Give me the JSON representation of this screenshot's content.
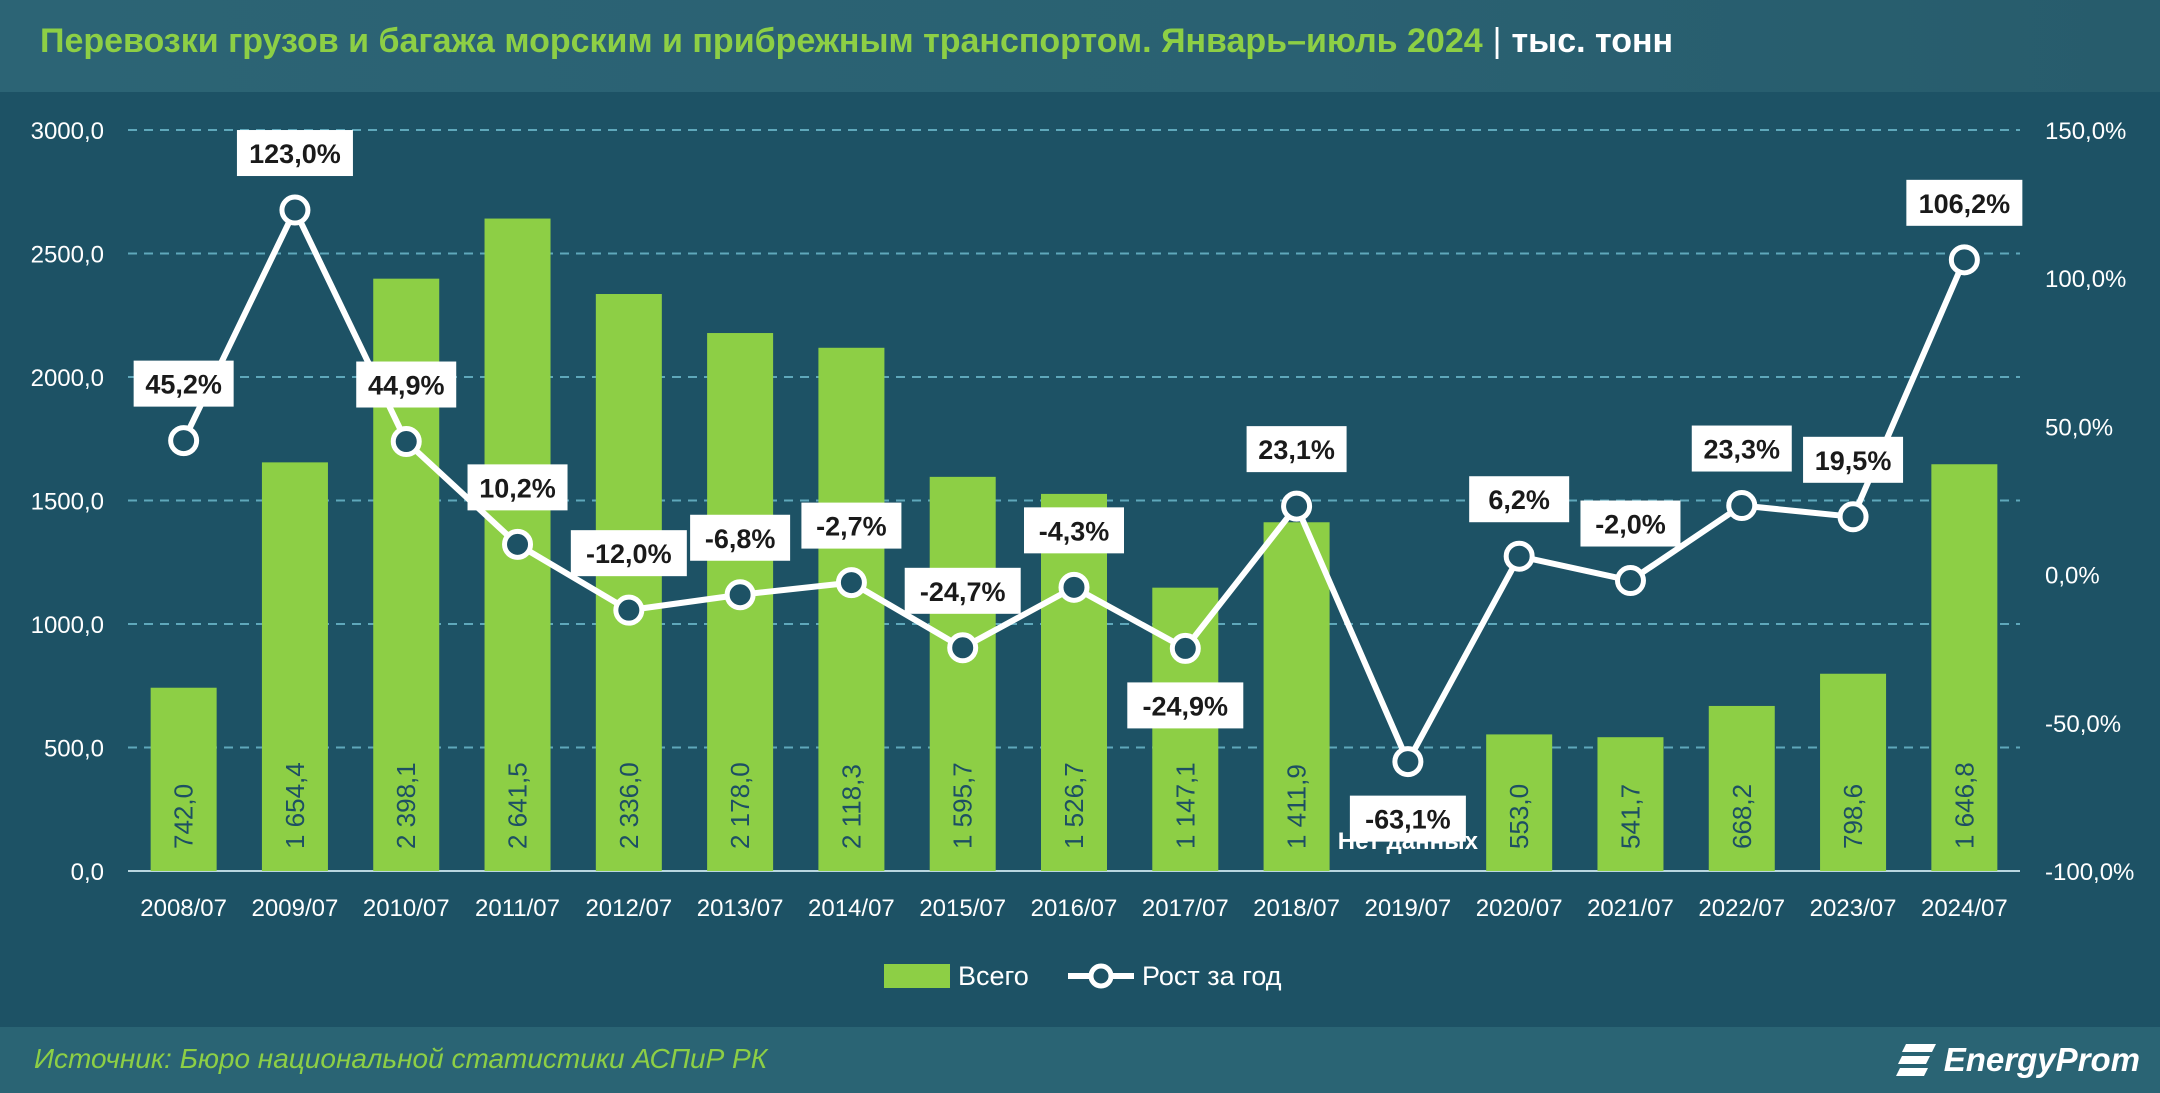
{
  "header": {
    "title": "Перевозки грузов и багажа морским и прибрежным транспортом. Январь–июль 2024",
    "separator": "|",
    "unit": "тыс. тонн"
  },
  "footer": {
    "source": "Источник: Бюро национальной статистики АСПиР РК",
    "logo_text": "EnergyProm"
  },
  "colors": {
    "background": "#1d5265",
    "header": "#2c6475",
    "bar": "#8dcf45",
    "line": "#ffffff",
    "title": "#8dcf45"
  },
  "chart_data": {
    "type": "bar",
    "categories": [
      "2008/07",
      "2009/07",
      "2010/07",
      "2011/07",
      "2012/07",
      "2013/07",
      "2014/07",
      "2015/07",
      "2016/07",
      "2017/07",
      "2018/07",
      "2019/07",
      "2020/07",
      "2021/07",
      "2022/07",
      "2023/07",
      "2024/07"
    ],
    "series": [
      {
        "name": "Всего",
        "type": "bar",
        "axis": "left",
        "values": [
          742.0,
          1654.4,
          2398.1,
          2641.5,
          2336.0,
          2178.0,
          2118.3,
          1595.7,
          1526.7,
          1147.1,
          1411.9,
          null,
          553.0,
          541.7,
          668.2,
          798.6,
          1646.8
        ],
        "labels": [
          "742,0",
          "1 654,4",
          "2 398,1",
          "2 641,5",
          "2 336,0",
          "2 178,0",
          "2 118,3",
          "1 595,7",
          "1 526,7",
          "1 147,1",
          "1 411,9",
          "Нет данных",
          "553,0",
          "541,7",
          "668,2",
          "798,6",
          "1 646,8"
        ]
      },
      {
        "name": "Рост за год",
        "type": "line",
        "axis": "right",
        "values": [
          45.2,
          123.0,
          44.9,
          10.2,
          -12.0,
          -6.8,
          -2.7,
          -24.7,
          -4.3,
          -24.9,
          23.1,
          -63.1,
          6.2,
          -2.0,
          23.3,
          19.5,
          106.2
        ],
        "labels": [
          "45,2%",
          "123,0%",
          "44,9%",
          "10,2%",
          "-12,0%",
          "-6,8%",
          "-2,7%",
          "-24,7%",
          "-4,3%",
          "-24,9%",
          "23,1%",
          "-63,1%",
          "6,2%",
          "-2,0%",
          "23,3%",
          "19,5%",
          "106,2%"
        ]
      }
    ],
    "y_left": {
      "min": 0,
      "max": 3000,
      "ticks": [
        "0,0",
        "500,0",
        "1000,0",
        "1500,0",
        "2000,0",
        "2500,0",
        "3000,0"
      ]
    },
    "y_right": {
      "min": -100,
      "max": 150,
      "ticks": [
        "-100,0%",
        "-50,0%",
        "0,0%",
        "50,0%",
        "100,0%",
        "150,0%"
      ]
    },
    "grid": true,
    "legend": {
      "position": "bottom"
    }
  }
}
